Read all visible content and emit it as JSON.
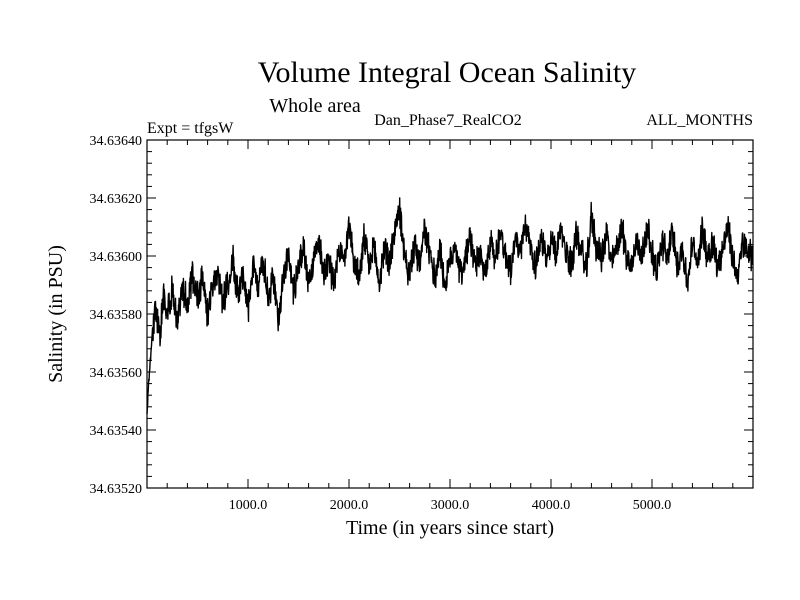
{
  "chart_data": {
    "type": "line",
    "title": "Volume Integral Ocean Salinity",
    "subtitle": "Whole area",
    "experiment_label": "Expt = tfgsW",
    "run_label": "Dan_Phase7_RealCO2",
    "period_label": "ALL_MONTHS",
    "xlabel": "Time (in years since start)",
    "ylabel": "Salinity (in PSU)",
    "xlim": [
      0,
      6000
    ],
    "ylim": [
      34.6352,
      34.6364
    ],
    "x_ticks": [
      1000,
      2000,
      3000,
      4000,
      5000
    ],
    "x_tick_labels": [
      "1000.0",
      "2000.0",
      "3000.0",
      "4000.0",
      "5000.0"
    ],
    "y_ticks": [
      34.6352,
      34.6354,
      34.6356,
      34.6358,
      34.636,
      34.6362,
      34.6364
    ],
    "y_tick_labels": [
      "34.63520",
      "34.63540",
      "34.63560",
      "34.63580",
      "34.63600",
      "34.63620",
      "34.63640"
    ],
    "grid": false,
    "series": [
      {
        "name": "tfgsW",
        "color": "#000000",
        "x": [
          0,
          20,
          40,
          60,
          80,
          100,
          130,
          160,
          200,
          250,
          300,
          350,
          400,
          450,
          500,
          550,
          600,
          650,
          700,
          750,
          800,
          850,
          900,
          950,
          1000,
          1050,
          1100,
          1150,
          1200,
          1250,
          1300,
          1350,
          1400,
          1450,
          1500,
          1550,
          1600,
          1650,
          1700,
          1750,
          1800,
          1850,
          1900,
          1950,
          2000,
          2050,
          2100,
          2150,
          2200,
          2250,
          2300,
          2350,
          2400,
          2450,
          2500,
          2550,
          2600,
          2650,
          2700,
          2750,
          2800,
          2850,
          2900,
          2950,
          3000,
          3050,
          3100,
          3150,
          3200,
          3250,
          3300,
          3350,
          3400,
          3450,
          3500,
          3550,
          3600,
          3650,
          3700,
          3750,
          3800,
          3850,
          3900,
          3950,
          4000,
          4050,
          4100,
          4150,
          4200,
          4250,
          4300,
          4350,
          4400,
          4450,
          4500,
          4550,
          4600,
          4650,
          4700,
          4750,
          4800,
          4850,
          4900,
          4950,
          5000,
          5050,
          5100,
          5150,
          5200,
          5250,
          5300,
          5350,
          5400,
          5450,
          5500,
          5550,
          5600,
          5650,
          5700,
          5750,
          5800,
          5850,
          5900,
          5950,
          6000
        ],
        "values": [
          34.63545,
          34.63558,
          34.63567,
          34.63576,
          34.63582,
          34.63578,
          34.63574,
          34.63586,
          34.63581,
          34.63588,
          34.63577,
          34.6359,
          34.63583,
          34.63594,
          34.63586,
          34.63592,
          34.6358,
          34.63589,
          34.63596,
          34.63584,
          34.63591,
          34.63598,
          34.63587,
          34.63594,
          34.63582,
          34.63596,
          34.63588,
          34.63599,
          34.63585,
          34.63592,
          34.63578,
          34.63594,
          34.636,
          34.63588,
          34.63596,
          34.63603,
          34.63591,
          34.63598,
          34.63606,
          34.63594,
          34.63601,
          34.63589,
          34.63604,
          34.63597,
          34.63612,
          34.63598,
          34.63592,
          34.63606,
          34.63596,
          34.63603,
          34.6359,
          34.63604,
          34.63597,
          34.63608,
          34.63617,
          34.63599,
          34.63593,
          34.63604,
          34.63596,
          34.63609,
          34.636,
          34.63593,
          34.63603,
          34.63589,
          34.63598,
          34.63605,
          34.63594,
          34.63599,
          34.63607,
          34.63596,
          34.63601,
          34.63593,
          34.63605,
          34.63599,
          34.63609,
          34.636,
          34.63596,
          34.63606,
          34.63601,
          34.6361,
          34.63603,
          34.63597,
          34.63607,
          34.63598,
          34.63605,
          34.636,
          34.6361,
          34.63601,
          34.63597,
          34.63608,
          34.63602,
          34.63595,
          34.63614,
          34.63603,
          34.63599,
          34.63608,
          34.63597,
          34.63603,
          34.6361,
          34.636,
          34.63596,
          34.63606,
          34.636,
          34.6361,
          34.63601,
          34.63595,
          34.63605,
          34.636,
          34.63608,
          34.63597,
          34.63603,
          34.6359,
          34.63604,
          34.63598,
          34.63609,
          34.636,
          34.63605,
          34.63596,
          34.63603,
          34.6361,
          34.63599,
          34.63593,
          34.63605,
          34.63601,
          34.63599
        ]
      }
    ]
  }
}
